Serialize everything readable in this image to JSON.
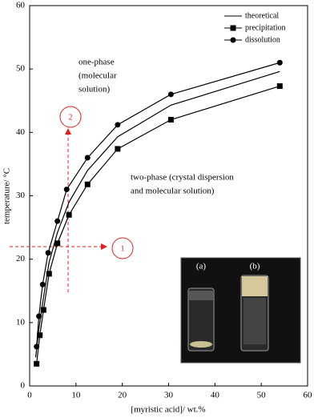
{
  "chart_data": {
    "type": "line",
    "x_label": "[myristic acid]/ wt.%",
    "y_label": "temperature/ °C",
    "xlim": [
      0,
      60
    ],
    "xticks": [
      0,
      10,
      20,
      30,
      40,
      50,
      60
    ],
    "ylim": [
      0,
      60
    ],
    "yticks": [
      0,
      10,
      20,
      30,
      40,
      50,
      60
    ],
    "legend": "upper right",
    "series": [
      {
        "name": "theoretical",
        "color": "#000000",
        "marker": "none",
        "x": [
          1.3,
          2,
          3,
          4.2,
          6,
          8.5,
          12.5,
          19,
          30.5,
          54
        ],
        "values": [
          4.5,
          9,
          14,
          19.5,
          24.2,
          29,
          34,
          39.3,
          44.3,
          49.6
        ]
      },
      {
        "name": "precipitation",
        "color": "#000000",
        "marker": "square",
        "x": [
          1.5,
          2.2,
          3,
          4.2,
          6,
          8.5,
          12.5,
          19,
          30.5,
          54
        ],
        "values": [
          3.5,
          8,
          12,
          17.7,
          22.5,
          27,
          31.8,
          37.4,
          42,
          47.3
        ]
      },
      {
        "name": "dissolution",
        "color": "#000000",
        "marker": "circle",
        "x": [
          1.5,
          2,
          2.8,
          4,
          6,
          8,
          12.5,
          19,
          30.5,
          54
        ],
        "values": [
          6.2,
          11,
          16,
          21,
          26,
          31,
          36,
          41.2,
          46,
          51
        ]
      }
    ],
    "annotations": {
      "one_phase": [
        "one-phase",
        "(molecular",
        "solution)"
      ],
      "two_phase": [
        "two-phase  (crystal  dispersion",
        "and molecular solution)"
      ],
      "marker_1": "1",
      "marker_2": "2",
      "inset_a": "(a)",
      "inset_b": "(b)"
    }
  }
}
